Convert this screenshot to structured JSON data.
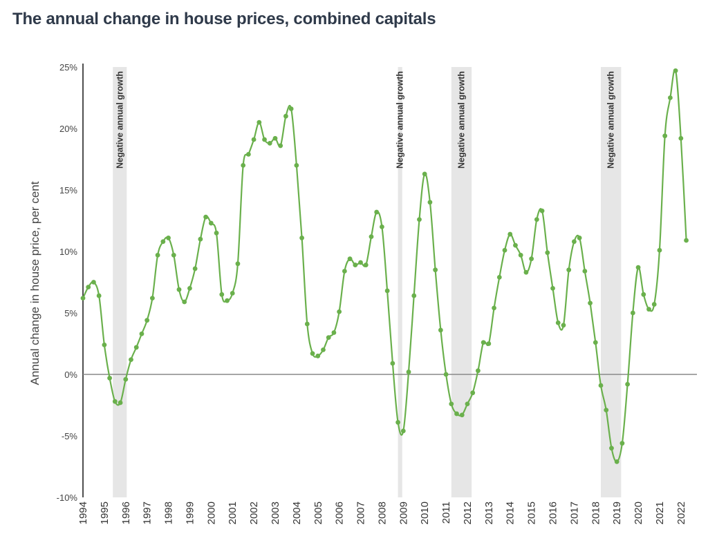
{
  "title": "The annual change in house prices, combined capitals",
  "chart_data": {
    "type": "line",
    "title": "The annual change in house prices, combined capitals",
    "ylabel": "Annual change in house price, per cent",
    "xlabel": "",
    "ylim": [
      -10,
      25
    ],
    "yticks": [
      -10,
      -5,
      0,
      5,
      10,
      15,
      20,
      25
    ],
    "ytick_labels": [
      "-10%",
      "-5%",
      "0%",
      "5%",
      "10%",
      "15%",
      "20%",
      "25%"
    ],
    "xlim": [
      1994,
      2022.75
    ],
    "xticks": [
      "1994",
      "1995",
      "1996",
      "1997",
      "1998",
      "1999",
      "2000",
      "2001",
      "2002",
      "2003",
      "2004",
      "2005",
      "2006",
      "2007",
      "2008",
      "2009",
      "2010",
      "2011",
      "2012",
      "2013",
      "2014",
      "2015",
      "2016",
      "2017",
      "2018",
      "2019",
      "2020",
      "2021",
      "2022"
    ],
    "line_color": "#6ab04c",
    "zero_line_color": "#888888",
    "band_color": "#e6e6e6",
    "bands": [
      {
        "start": 1995.4,
        "end": 1996.05,
        "label": "Negative annual growth"
      },
      {
        "start": 2008.75,
        "end": 2008.95,
        "label": "Negative annual growth"
      },
      {
        "start": 2011.25,
        "end": 2012.2,
        "label": "Negative annual growth"
      },
      {
        "start": 2018.25,
        "end": 2019.2,
        "label": "Negative annual growth"
      }
    ],
    "x": [
      1994.0,
      1994.25,
      1994.5,
      1994.75,
      1995.0,
      1995.25,
      1995.5,
      1995.75,
      1996.0,
      1996.25,
      1996.5,
      1996.75,
      1997.0,
      1997.25,
      1997.5,
      1997.75,
      1998.0,
      1998.25,
      1998.5,
      1998.75,
      1999.0,
      1999.25,
      1999.5,
      1999.75,
      2000.0,
      2000.25,
      2000.5,
      2000.75,
      2001.0,
      2001.25,
      2001.5,
      2001.75,
      2002.0,
      2002.25,
      2002.5,
      2002.75,
      2003.0,
      2003.25,
      2003.5,
      2003.75,
      2004.0,
      2004.25,
      2004.5,
      2004.75,
      2005.0,
      2005.25,
      2005.5,
      2005.75,
      2006.0,
      2006.25,
      2006.5,
      2006.75,
      2007.0,
      2007.25,
      2007.5,
      2007.75,
      2008.0,
      2008.25,
      2008.5,
      2008.75,
      2009.0,
      2009.25,
      2009.5,
      2009.75,
      2010.0,
      2010.25,
      2010.5,
      2010.75,
      2011.0,
      2011.25,
      2011.5,
      2011.75,
      2012.0,
      2012.25,
      2012.5,
      2012.75,
      2013.0,
      2013.25,
      2013.5,
      2013.75,
      2014.0,
      2014.25,
      2014.5,
      2014.75,
      2015.0,
      2015.25,
      2015.5,
      2015.75,
      2016.0,
      2016.25,
      2016.5,
      2016.75,
      2017.0,
      2017.25,
      2017.5,
      2017.75,
      2018.0,
      2018.25,
      2018.5,
      2018.75,
      2019.0,
      2019.25,
      2019.5,
      2019.75,
      2020.0,
      2020.25,
      2020.5,
      2020.75,
      2021.0,
      2021.25,
      2021.5,
      2021.75,
      2022.0,
      2022.25
    ],
    "series": [
      {
        "values": [
          6.2,
          7.1,
          7.5,
          6.4,
          2.4,
          -0.3,
          -2.2,
          -2.3,
          -0.4,
          1.2,
          2.2,
          3.3,
          4.4,
          6.2,
          9.7,
          10.8,
          11.1,
          9.7,
          6.9,
          5.9,
          7.0,
          8.6,
          11.0,
          12.8,
          12.3,
          11.5,
          6.5,
          6.0,
          6.6,
          9.0,
          17.0,
          17.9,
          19.1,
          20.5,
          19.1,
          18.8,
          19.2,
          18.6,
          21.0,
          21.6,
          17.0,
          11.1,
          4.1,
          1.7,
          1.5,
          2.0,
          3.0,
          3.4,
          5.1,
          8.4,
          9.4,
          8.9,
          9.1,
          8.9,
          11.2,
          13.2,
          12.0,
          6.8,
          0.9,
          -3.9,
          -4.6,
          0.2,
          6.4,
          12.6,
          16.3,
          14.0,
          8.5,
          3.6,
          0.0,
          -2.4,
          -3.2,
          -3.3,
          -2.4,
          -1.5,
          0.3,
          2.6,
          2.5,
          5.4,
          7.9,
          10.1,
          11.4,
          10.5,
          9.7,
          8.3,
          9.4,
          12.6,
          13.3,
          9.9,
          7.0,
          4.2,
          4.0,
          8.5,
          10.8,
          11.1,
          8.4,
          5.8,
          2.6,
          -0.9,
          -2.9,
          -6.0,
          -7.1,
          -5.6,
          -0.8,
          5.0,
          8.7,
          6.5,
          5.3,
          5.7,
          10.1,
          19.4,
          22.5,
          24.7,
          19.2,
          10.9
        ]
      }
    ]
  }
}
